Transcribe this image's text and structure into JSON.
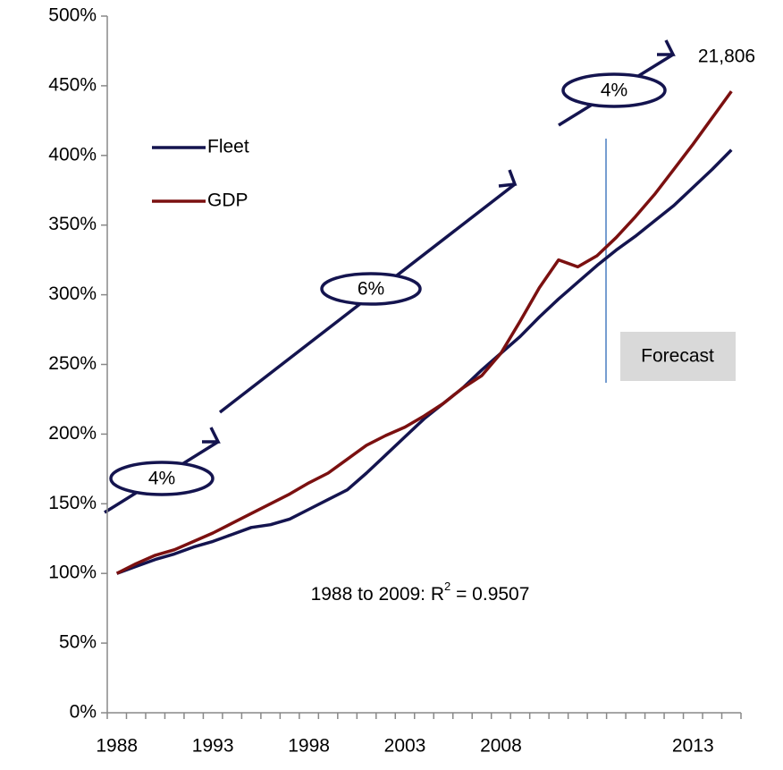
{
  "chart_data": {
    "type": "line",
    "categories": [
      "1988",
      null,
      null,
      null,
      null,
      "1993",
      null,
      null,
      null,
      null,
      "1998",
      null,
      null,
      null,
      null,
      "2003",
      null,
      null,
      null,
      null,
      "2008",
      null,
      null,
      null,
      null,
      null,
      null,
      null,
      null,
      null,
      "2013",
      null,
      null
    ],
    "series": [
      {
        "name": "Fleet",
        "color": "#14144f",
        "values": [
          100,
          105,
          110,
          114,
          119,
          123,
          128,
          133,
          135,
          139,
          146,
          153,
          160,
          172,
          185,
          198,
          211,
          222,
          233,
          246,
          258,
          270,
          284,
          297,
          309,
          321,
          332,
          342,
          353,
          364,
          377,
          390,
          404
        ]
      },
      {
        "name": "GDP",
        "color": "#7b1010",
        "values": [
          100,
          107,
          113,
          117,
          123,
          129,
          136,
          143,
          150,
          157,
          165,
          172,
          182,
          192,
          199,
          205,
          213,
          222,
          233,
          242,
          258,
          281,
          305,
          325,
          320,
          328,
          341,
          356,
          372,
          390,
          408,
          427,
          446
        ]
      }
    ],
    "ylim": [
      0,
      500
    ],
    "yticks": [
      {
        "value": 0,
        "label": "0%"
      },
      {
        "value": 50,
        "label": "50%"
      },
      {
        "value": 100,
        "label": "100%"
      },
      {
        "value": 150,
        "label": "150%"
      },
      {
        "value": 200,
        "label": "200%"
      },
      {
        "value": 250,
        "label": "250%"
      },
      {
        "value": 300,
        "label": "300%"
      },
      {
        "value": 350,
        "label": "350%"
      },
      {
        "value": 400,
        "label": "400%"
      },
      {
        "value": 450,
        "label": "450%"
      },
      {
        "value": 500,
        "label": "500%"
      }
    ],
    "grid": false,
    "legend": "upper left",
    "annotations": [
      "4%",
      "6%",
      "4%",
      "21,806",
      "Forecast"
    ],
    "r_squared_note": [
      "1988 to 2009: R",
      "2",
      " = 0.9507"
    ]
  }
}
